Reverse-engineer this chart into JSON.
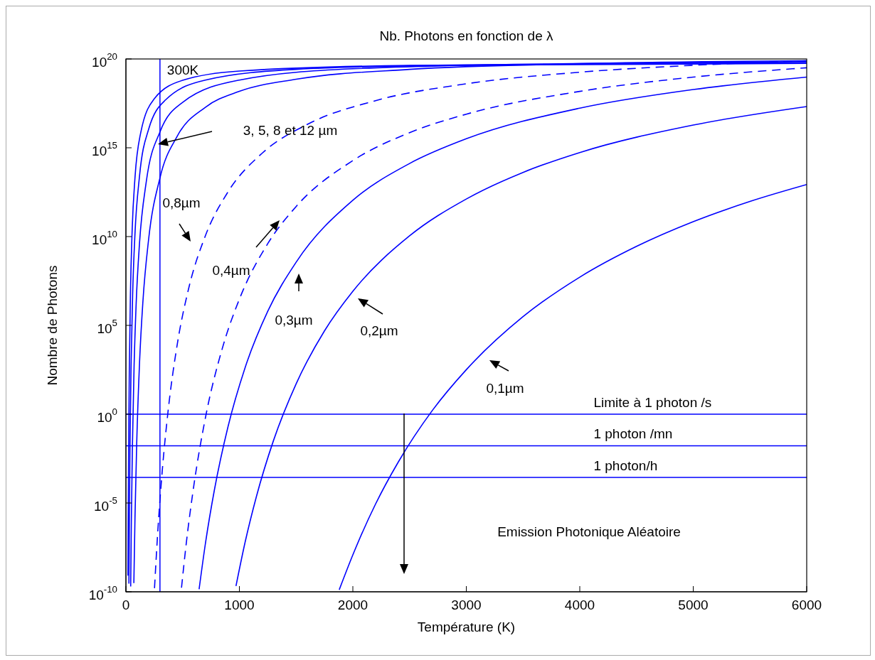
{
  "chart_data": {
    "type": "line",
    "title": "Nb. Photons en fonction de λ",
    "xlabel": "Température (K)",
    "ylabel": "Nombre de Photons",
    "log": "y",
    "marker": "none",
    "xlim": [
      0,
      6000
    ],
    "xticks": [
      0,
      1000,
      2000,
      3000,
      4000,
      5000,
      6000
    ],
    "ylim": [
      1e-10,
      1e+20
    ],
    "yticks": [
      {
        "value": 1e-10,
        "label": "10$^{-10}$"
      },
      {
        "value": 1e-05,
        "label": "10$^{-5}$"
      },
      {
        "value": 1,
        "label": "10$^{0}$"
      },
      {
        "value": 100000.0,
        "label": "10$^{5}$"
      },
      {
        "value": 10000000000.0,
        "label": "10$^{10}$"
      },
      {
        "value": 1000000000000000.0,
        "label": "10$^{15}$"
      },
      {
        "value": 1e+20,
        "label": "10$^{20}$"
      }
    ],
    "series": [
      {
        "color": "#0000ff",
        "line_style": "solid",
        "x": [
          18,
          20,
          24,
          30,
          40,
          55,
          80,
          130,
          250,
          500,
          1000,
          2500,
          6000
        ],
        "values": [
          8.1e-10,
          6.3e-07,
          0.014,
          300,
          6600000.0,
          23000000000.0,
          21000000000000.0,
          6800000000000000.0,
          5.8e+17,
          6.3e+18,
          2.1e+19,
          4.3e+19,
          5.6e+19
        ]
      },
      {
        "color": "#0000ff",
        "line_style": "solid",
        "x": [
          26.5,
          30,
          36,
          45,
          60,
          80,
          120,
          200,
          350,
          700,
          1500,
          3000,
          6000
        ],
        "values": [
          2.9e-10,
          7.9e-07,
          0.017,
          370,
          8100000.0,
          15000000000.0,
          26000000000000.0,
          1.1e+16,
          5e+17,
          6.5e+18,
          2.6e+19,
          4.7e+19,
          6.3e+19
        ]
      },
      {
        "color": "#0000ff",
        "line_style": "solid",
        "x": [
          42,
          48,
          57,
          72,
          90,
          120,
          180,
          300,
          500,
          1000,
          2000,
          4000,
          6000
        ],
        "values": [
          2e-10,
          1e-06,
          0.013,
          500,
          1500000.0,
          4400000000.0,
          13000000000000.0,
          7800000000000000.0,
          3.6e+17,
          6.5e+18,
          2.8e+19,
          5.6e+19,
          7.1e+19
        ]
      },
      {
        "color": "#0000ff",
        "line_style": "solid",
        "x": [
          70,
          80,
          95,
          120,
          150,
          200,
          300,
          450,
          700,
          1000,
          1500,
          2500,
          4000,
          6000
        ],
        "values": [
          3.1e-10,
          1.6e-06,
          0.021,
          780,
          2300000.0,
          6900000000.0,
          20000000000000.0,
          4200000000000000.0,
          1.9e+17,
          1.5e+18,
          7.2e+18,
          2.6e+19,
          5.4e+19,
          7.9e+19
        ]
      },
      {
        "color": "#0000ff",
        "line_style": "dashed",
        "x": [
          252,
          280,
          320,
          370,
          450,
          550,
          700,
          900,
          1200,
          1600,
          2200,
          3000,
          4000,
          5000,
          6000
        ],
        "values": [
          1.6e-10,
          2e-07,
          0.00062,
          1.2,
          6900,
          10000000.0,
          11000000000.0,
          3300000000000.0,
          490000000000000.0,
          2.1e+16,
          4.5e+17,
          4e+18,
          1.8e+19,
          4.4e+19,
          7.9e+19
        ]
      },
      {
        "color": "#0000ff",
        "line_style": "dashed",
        "x": [
          490,
          530,
          600,
          700,
          850,
          1000,
          1250,
          1500,
          2000,
          2500,
          3000,
          4000,
          5000,
          6000
        ],
        "values": [
          1.7e-10,
          4.2e-08,
          0.00011,
          0.6,
          5200,
          3000000.0,
          4000000000.0,
          490000000000.0,
          190000000000000.0,
          7100000000000000.0,
          7.8e+16,
          1.5e+18,
          9.5e+18,
          3.2e+19
        ]
      },
      {
        "color": "#0000ff",
        "line_style": "solid",
        "x": [
          645,
          700,
          780,
          900,
          1050,
          1250,
          1500,
          2000,
          2500,
          3000,
          4000,
          5000,
          6000
        ],
        "values": [
          1.4e-10,
          4.9e-08,
          5.5e-05,
          0.2,
          410,
          620000.0,
          360000000.0,
          1100000000000.0,
          130000000000000.0,
          3200000000000000.0,
          1.7e+17,
          1.9e+18,
          9.5e+18
        ]
      },
      {
        "color": "#0000ff",
        "line_style": "solid",
        "x": [
          970,
          1050,
          1150,
          1300,
          1500,
          1750,
          2000,
          2500,
          3000,
          3500,
          4000,
          5000,
          6000
        ],
        "values": [
          2.1e-10,
          6e-08,
          2.3e-05,
          0.032,
          51,
          49000.0,
          8300000.0,
          11000000000.0,
          1300000000000.0,
          41000000000000.0,
          540000000000000.0,
          1.9e+16,
          2.1e+17
        ]
      },
      {
        "color": "#0000ff",
        "line_style": "solid",
        "x": [
          1880,
          2000,
          2200,
          2400,
          2700,
          3000,
          3500,
          4000,
          4500,
          5000,
          5500,
          6000
        ],
        "values": [
          1.3e-10,
          1.2e-08,
          8.7e-06,
          0.002,
          1.6,
          320,
          310000.0,
          52000000.0,
          2800000000.0,
          69000000000.0,
          950000000000.0,
          8500000000000.0
        ]
      }
    ],
    "ref_lines": [
      {
        "axis": "x",
        "value": 300,
        "label": "300K",
        "color": "#0000ff"
      },
      {
        "axis": "y",
        "value": 1,
        "label": "Limite à 1 photon /s",
        "color": "#0000ff"
      },
      {
        "axis": "y",
        "value": 0.0167,
        "label": "1 photon /mn",
        "color": "#0000ff"
      },
      {
        "axis": "y",
        "value": 0.000278,
        "label": "1 photon/h",
        "color": "#0000ff"
      }
    ],
    "annotations": [
      "3, 5, 8 et 12 µm",
      "0,8µm",
      "0,4µm",
      "0,3µm",
      "0,2µm",
      "0,1µm",
      "Emission Photonique Aléatoire"
    ]
  }
}
